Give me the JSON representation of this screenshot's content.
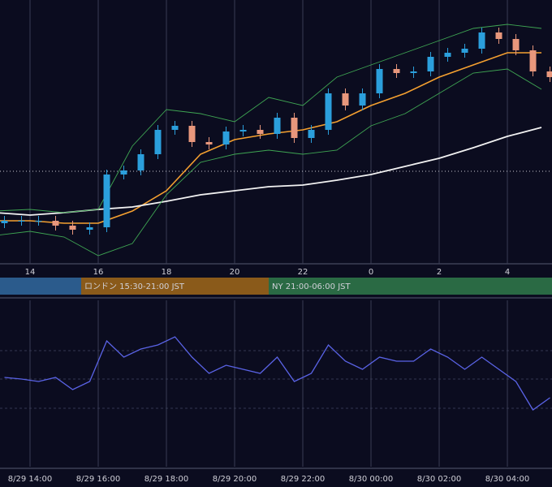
{
  "chart_data": [
    {
      "type": "candlestick",
      "x": [
        13.25,
        13.75,
        14.25,
        14.75,
        15.25,
        15.75,
        16.25,
        16.75,
        17.25,
        17.75,
        18.25,
        18.75,
        19.25,
        19.75,
        20.25,
        20.75,
        21.25,
        21.75,
        22.25,
        22.75,
        23.25,
        23.75,
        24.25,
        24.75,
        25.25,
        25.75,
        26.25,
        26.75,
        27.25,
        27.75,
        28.25,
        28.75,
        29.25
      ],
      "open": [
        50,
        53,
        53,
        53,
        47,
        42,
        45,
        110,
        115,
        135,
        165,
        170,
        150,
        147,
        163,
        165,
        160,
        180,
        155,
        165,
        210,
        195,
        210,
        240,
        235,
        237,
        255,
        260,
        265,
        285,
        277,
        263,
        237
      ],
      "high": [
        59,
        59,
        59,
        59,
        53,
        51,
        116,
        121,
        141,
        171,
        176,
        176,
        156,
        169,
        171,
        171,
        186,
        186,
        171,
        216,
        216,
        216,
        246,
        246,
        243,
        261,
        266,
        271,
        291,
        291,
        283,
        269,
        243
      ],
      "low": [
        44,
        47,
        47,
        41,
        36,
        36,
        39,
        104,
        109,
        129,
        159,
        144,
        141,
        141,
        157,
        154,
        154,
        149,
        149,
        159,
        189,
        189,
        204,
        229,
        229,
        231,
        249,
        254,
        259,
        271,
        257,
        231,
        224
      ],
      "close": [
        53,
        53,
        53,
        47,
        42,
        45,
        110,
        115,
        135,
        165,
        170,
        150,
        147,
        163,
        165,
        160,
        180,
        155,
        165,
        210,
        195,
        210,
        240,
        235,
        237,
        255,
        260,
        265,
        285,
        277,
        263,
        237,
        230
      ],
      "up_color": "#2b9fdc",
      "down_color": "#e8977c",
      "lines": [
        {
          "color": "#f5a030",
          "x": [
            13,
            14,
            15,
            16,
            17,
            18,
            19,
            20,
            21,
            22,
            23,
            24,
            25,
            26,
            27,
            28,
            29
          ],
          "values": [
            53,
            53,
            50,
            50,
            65,
            90,
            135,
            153,
            160,
            165,
            175,
            195,
            210,
            230,
            245,
            260,
            260
          ]
        },
        {
          "color": "#f2f2f2",
          "x": [
            13,
            14,
            15,
            16,
            17,
            18,
            19,
            20,
            21,
            22,
            23,
            24,
            25,
            26,
            27,
            28,
            29
          ],
          "values": [
            63,
            60,
            63,
            67,
            70,
            77,
            85,
            90,
            95,
            97,
            103,
            110,
            120,
            130,
            143,
            157,
            168
          ]
        },
        {
          "color": "#3fa653",
          "x": [
            13,
            14,
            15,
            16,
            17,
            18,
            19,
            20,
            21,
            22,
            23,
            24,
            25,
            26,
            27,
            28,
            29
          ],
          "values": [
            65,
            67,
            63,
            67,
            145,
            190,
            185,
            175,
            205,
            195,
            230,
            245,
            260,
            275,
            290,
            295,
            290
          ]
        },
        {
          "color": "#3fa653",
          "x": [
            13,
            14,
            15,
            16,
            17,
            18,
            19,
            20,
            21,
            22,
            23,
            24,
            25,
            26,
            27,
            28,
            29
          ],
          "values": [
            35,
            40,
            33,
            10,
            25,
            85,
            125,
            135,
            140,
            135,
            140,
            170,
            185,
            210,
            235,
            240,
            215
          ]
        }
      ],
      "current_price": 114,
      "xlim": [
        13.119,
        29.309
      ],
      "ylim": [
        0,
        325
      ],
      "xticks": [
        14,
        16,
        18,
        20,
        22,
        {
          "value": 24,
          "label": "0"
        },
        {
          "value": 26,
          "label": "2"
        },
        {
          "value": 28,
          "label": "4"
        }
      ],
      "sessions": [
        {
          "label": "ロンドン 15:30-21:00 JST",
          "start": 15.5,
          "end": 21,
          "color": "#8a5a1a"
        },
        {
          "label": "NY 21:00-06:00 JST",
          "start": 21,
          "end": 30,
          "color": "#2a6a44"
        }
      ]
    },
    {
      "type": "line",
      "x": [
        13.25,
        13.75,
        14.25,
        14.75,
        15.25,
        15.75,
        16.25,
        16.75,
        17.25,
        17.75,
        18.25,
        18.75,
        19.25,
        19.75,
        20.25,
        20.75,
        21.25,
        21.75,
        22.25,
        22.75,
        23.25,
        23.75,
        24.25,
        24.75,
        25.25,
        25.75,
        26.25,
        26.75,
        27.25,
        27.75,
        28.25,
        28.75,
        29.25
      ],
      "values": [
        110,
        108,
        105,
        110,
        95,
        105,
        155,
        135,
        145,
        150,
        160,
        135,
        115,
        125,
        120,
        115,
        135,
        105,
        115,
        150,
        130,
        120,
        135,
        130,
        130,
        145,
        135,
        120,
        135,
        120,
        105,
        70,
        85
      ],
      "color": "#5a63e6",
      "xlim": [
        13.119,
        29.309
      ],
      "ylim": [
        0,
        205
      ],
      "xticks": [
        {
          "value": 14,
          "label": "8/29 14:00"
        },
        {
          "value": 16,
          "label": "8/29 16:00"
        },
        {
          "value": 18,
          "label": "8/29 18:00"
        },
        {
          "value": 20,
          "label": "8/29 20:00"
        },
        {
          "value": 22,
          "label": "8/29 22:00"
        },
        {
          "value": 24,
          "label": "8/30 00:00"
        },
        {
          "value": 26,
          "label": "8/30 02:00"
        },
        {
          "value": 28,
          "label": "8/30 04:00"
        }
      ]
    }
  ]
}
